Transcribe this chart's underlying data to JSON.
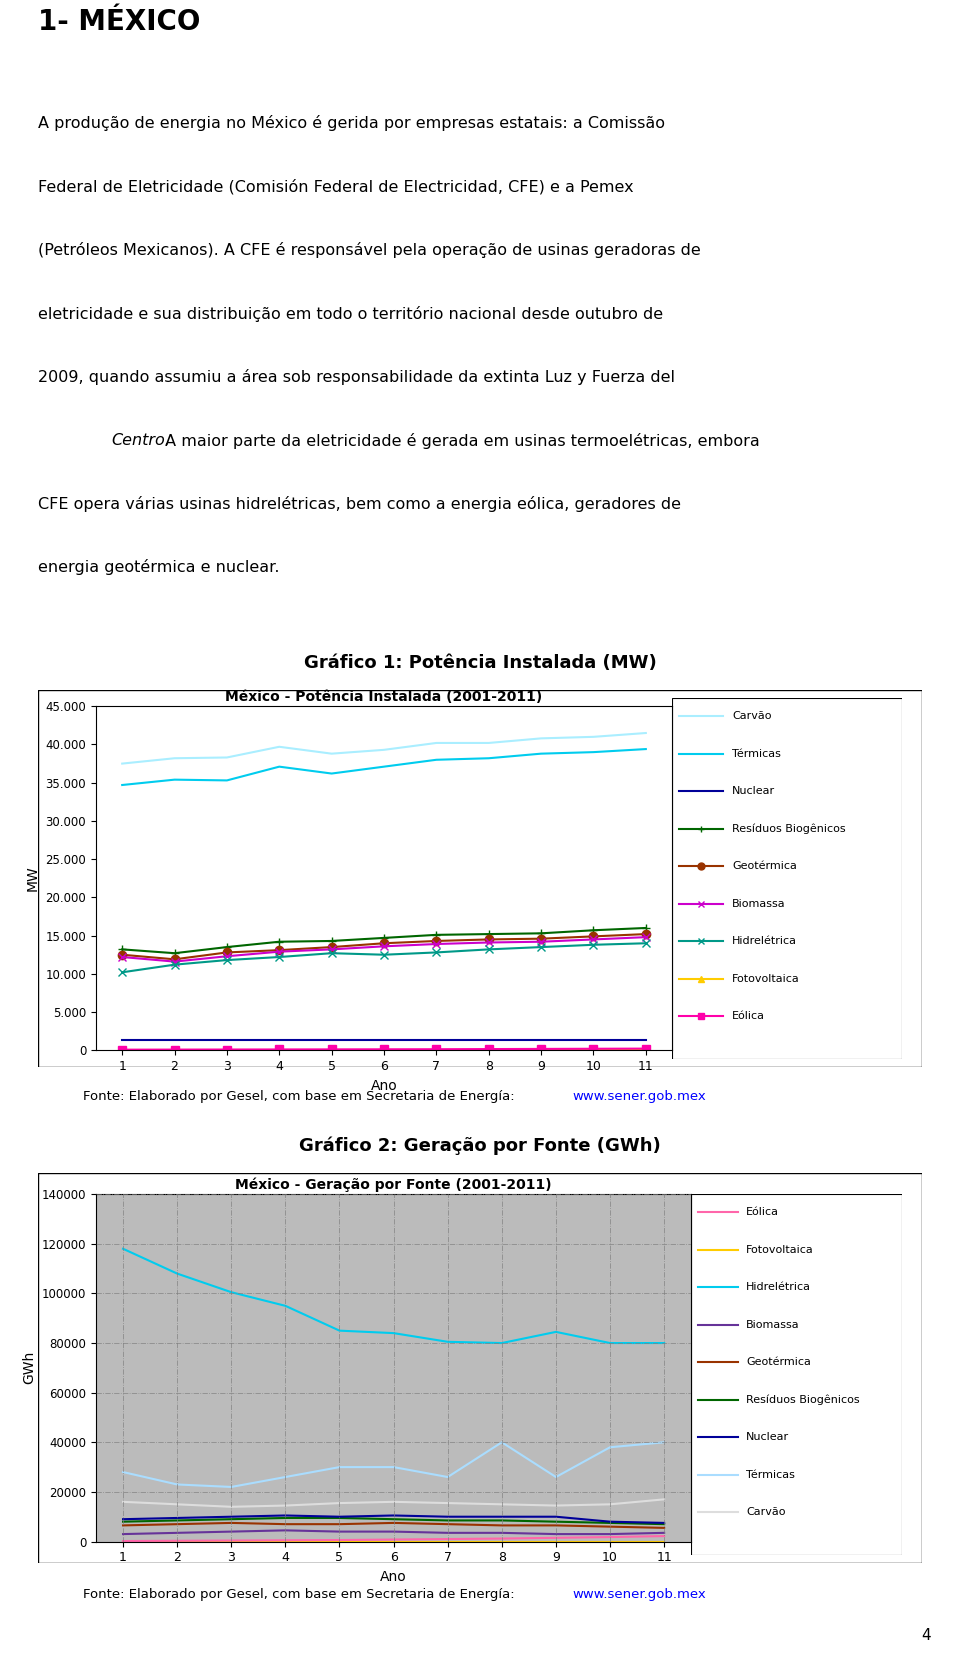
{
  "title_main": "1- MÉXICO",
  "chart1_title": "Gráfico 1: Potência Instalada (MW)",
  "chart1_inner_title": "México - Potência Instalada (2001-2011)",
  "chart1_ylabel": "MW",
  "chart1_xlabel": "Ano",
  "chart1_ylim": [
    0,
    45000
  ],
  "chart1_yticks": [
    0,
    5000,
    10000,
    15000,
    20000,
    25000,
    30000,
    35000,
    40000,
    45000
  ],
  "chart1_ytick_labels": [
    "0",
    "5.000",
    "10.000",
    "15.000",
    "20.000",
    "25.000",
    "30.000",
    "35.000",
    "40.000",
    "45.000"
  ],
  "chart1_xticks": [
    1,
    2,
    3,
    4,
    5,
    6,
    7,
    8,
    9,
    10,
    11
  ],
  "chart1_series": {
    "Carvão": [
      37500,
      38200,
      38300,
      39700,
      38800,
      39300,
      40200,
      40200,
      40800,
      41000,
      41500
    ],
    "Térmicas": [
      34700,
      35400,
      35300,
      37100,
      36200,
      37100,
      38000,
      38200,
      38800,
      39000,
      39400
    ],
    "Nuclear": [
      1365,
      1365,
      1365,
      1365,
      1365,
      1365,
      1365,
      1365,
      1365,
      1365,
      1365
    ],
    "Resíduos Biogênicos": [
      13200,
      12700,
      13500,
      14200,
      14300,
      14700,
      15100,
      15200,
      15300,
      15700,
      16000
    ],
    "Geotérmica": [
      12500,
      11900,
      12800,
      13100,
      13500,
      14000,
      14300,
      14500,
      14600,
      14900,
      15200
    ],
    "Biomassa": [
      12200,
      11600,
      12300,
      12900,
      13200,
      13600,
      13900,
      14100,
      14200,
      14500,
      14800
    ],
    "Hidrelétrica": [
      10200,
      11200,
      11800,
      12200,
      12700,
      12500,
      12800,
      13200,
      13500,
      13800,
      14000
    ],
    "Fotovoltaica": [
      10,
      10,
      10,
      10,
      10,
      10,
      10,
      10,
      10,
      10,
      10
    ],
    "Eólica": [
      80,
      90,
      100,
      110,
      120,
      130,
      140,
      160,
      180,
      200,
      220
    ]
  },
  "chart1_colors": {
    "Carvão": "#aaeeff",
    "Térmicas": "#00ccee",
    "Nuclear": "#000099",
    "Resíduos Biogênicos": "#006600",
    "Geotérmica": "#993300",
    "Biomassa": "#cc00cc",
    "Hidrelétrica": "#009988",
    "Fotovoltaica": "#ffcc00",
    "Eólica": "#ff00aa"
  },
  "chart1_markers": {
    "Carvão": "none",
    "Térmicas": "none",
    "Nuclear": "none",
    "Resíduos Biogênicos": "+",
    "Geotérmica": "o",
    "Biomassa": "x",
    "Hidrelétrica": "x",
    "Fotovoltaica": "^",
    "Eólica": "s"
  },
  "chart2_title": "Gráfico 2: Geração por Fonte (GWh)",
  "chart2_inner_title": "México - Geração por Fonte (2001-2011)",
  "chart2_ylabel": "GWh",
  "chart2_xlabel": "Ano",
  "chart2_ylim": [
    0,
    140000
  ],
  "chart2_yticks": [
    0,
    20000,
    40000,
    60000,
    80000,
    100000,
    120000,
    140000
  ],
  "chart2_ytick_labels": [
    "0",
    "20000",
    "40000",
    "60000",
    "80000",
    "100000",
    "120000",
    "140000"
  ],
  "chart2_xticks": [
    1,
    2,
    3,
    4,
    5,
    6,
    7,
    8,
    9,
    10,
    11
  ],
  "chart2_series": {
    "Hidrelétrica": [
      118000,
      108000,
      100500,
      95000,
      85000,
      84000,
      80500,
      80000,
      84500,
      80000,
      80000
    ],
    "Térmicas": [
      28000,
      23000,
      22000,
      26000,
      30000,
      30000,
      26000,
      40000,
      26000,
      38000,
      40000
    ],
    "Carvão": [
      16000,
      15000,
      14000,
      14500,
      15500,
      16000,
      15500,
      15000,
      14500,
      15000,
      17000
    ],
    "Nuclear": [
      9000,
      9500,
      10000,
      10500,
      10000,
      10500,
      10000,
      10000,
      10000,
      8000,
      7500
    ],
    "Resíduos Biogênicos": [
      8000,
      8500,
      9000,
      9500,
      9500,
      9000,
      8500,
      8500,
      8000,
      7500,
      7000
    ],
    "Geotérmica": [
      6500,
      7000,
      7500,
      7000,
      7000,
      7500,
      7000,
      6500,
      6500,
      6000,
      5500
    ],
    "Biomassa": [
      3000,
      3500,
      4000,
      4500,
      4000,
      4000,
      3500,
      3500,
      3000,
      3000,
      3500
    ],
    "Fotovoltaica": [
      5,
      5,
      5,
      5,
      5,
      5,
      5,
      5,
      5,
      5,
      5
    ],
    "Eólica": [
      200,
      300,
      400,
      500,
      600,
      800,
      1000,
      1200,
      1500,
      1800,
      2200
    ]
  },
  "chart2_colors": {
    "Hidrelétrica": "#00ccee",
    "Térmicas": "#aaddff",
    "Carvão": "#dddddd",
    "Nuclear": "#000099",
    "Resíduos Biogênicos": "#006600",
    "Geotérmica": "#993300",
    "Biomassa": "#663399",
    "Fotovoltaica": "#ffcc00",
    "Eólica": "#ff66aa"
  },
  "fonte_text": "Fonte: Elaborado por Gesel, com base em Secretaria de Energía: ",
  "fonte_url": "www.sener.gob.mex",
  "background_color": "#ffffff",
  "page_number": "4",
  "para_lines": [
    "A produção de energia no México é gerida por empresas estatais: a Comissão",
    "Federal de Eletricidade (Comisión Federal de Electricidad, CFE) e a Pemex",
    "(Petróleos Mexicanos). A CFE é responsável pela operação de usinas geradoras de",
    "eletricidade e sua distribuição em todo o território nacional desde outubro de",
    "2009, quando assumiu a área sob responsabilidade da extinta Luz y Fuerza del",
    "Centro. A maior parte da eletricidade é gerada em usinas termoelétricas, embora",
    "CFE opera várias usinas hidrelétricas, bem como a energia eólica, geradores de",
    "energia geotérmica e nuclear."
  ]
}
